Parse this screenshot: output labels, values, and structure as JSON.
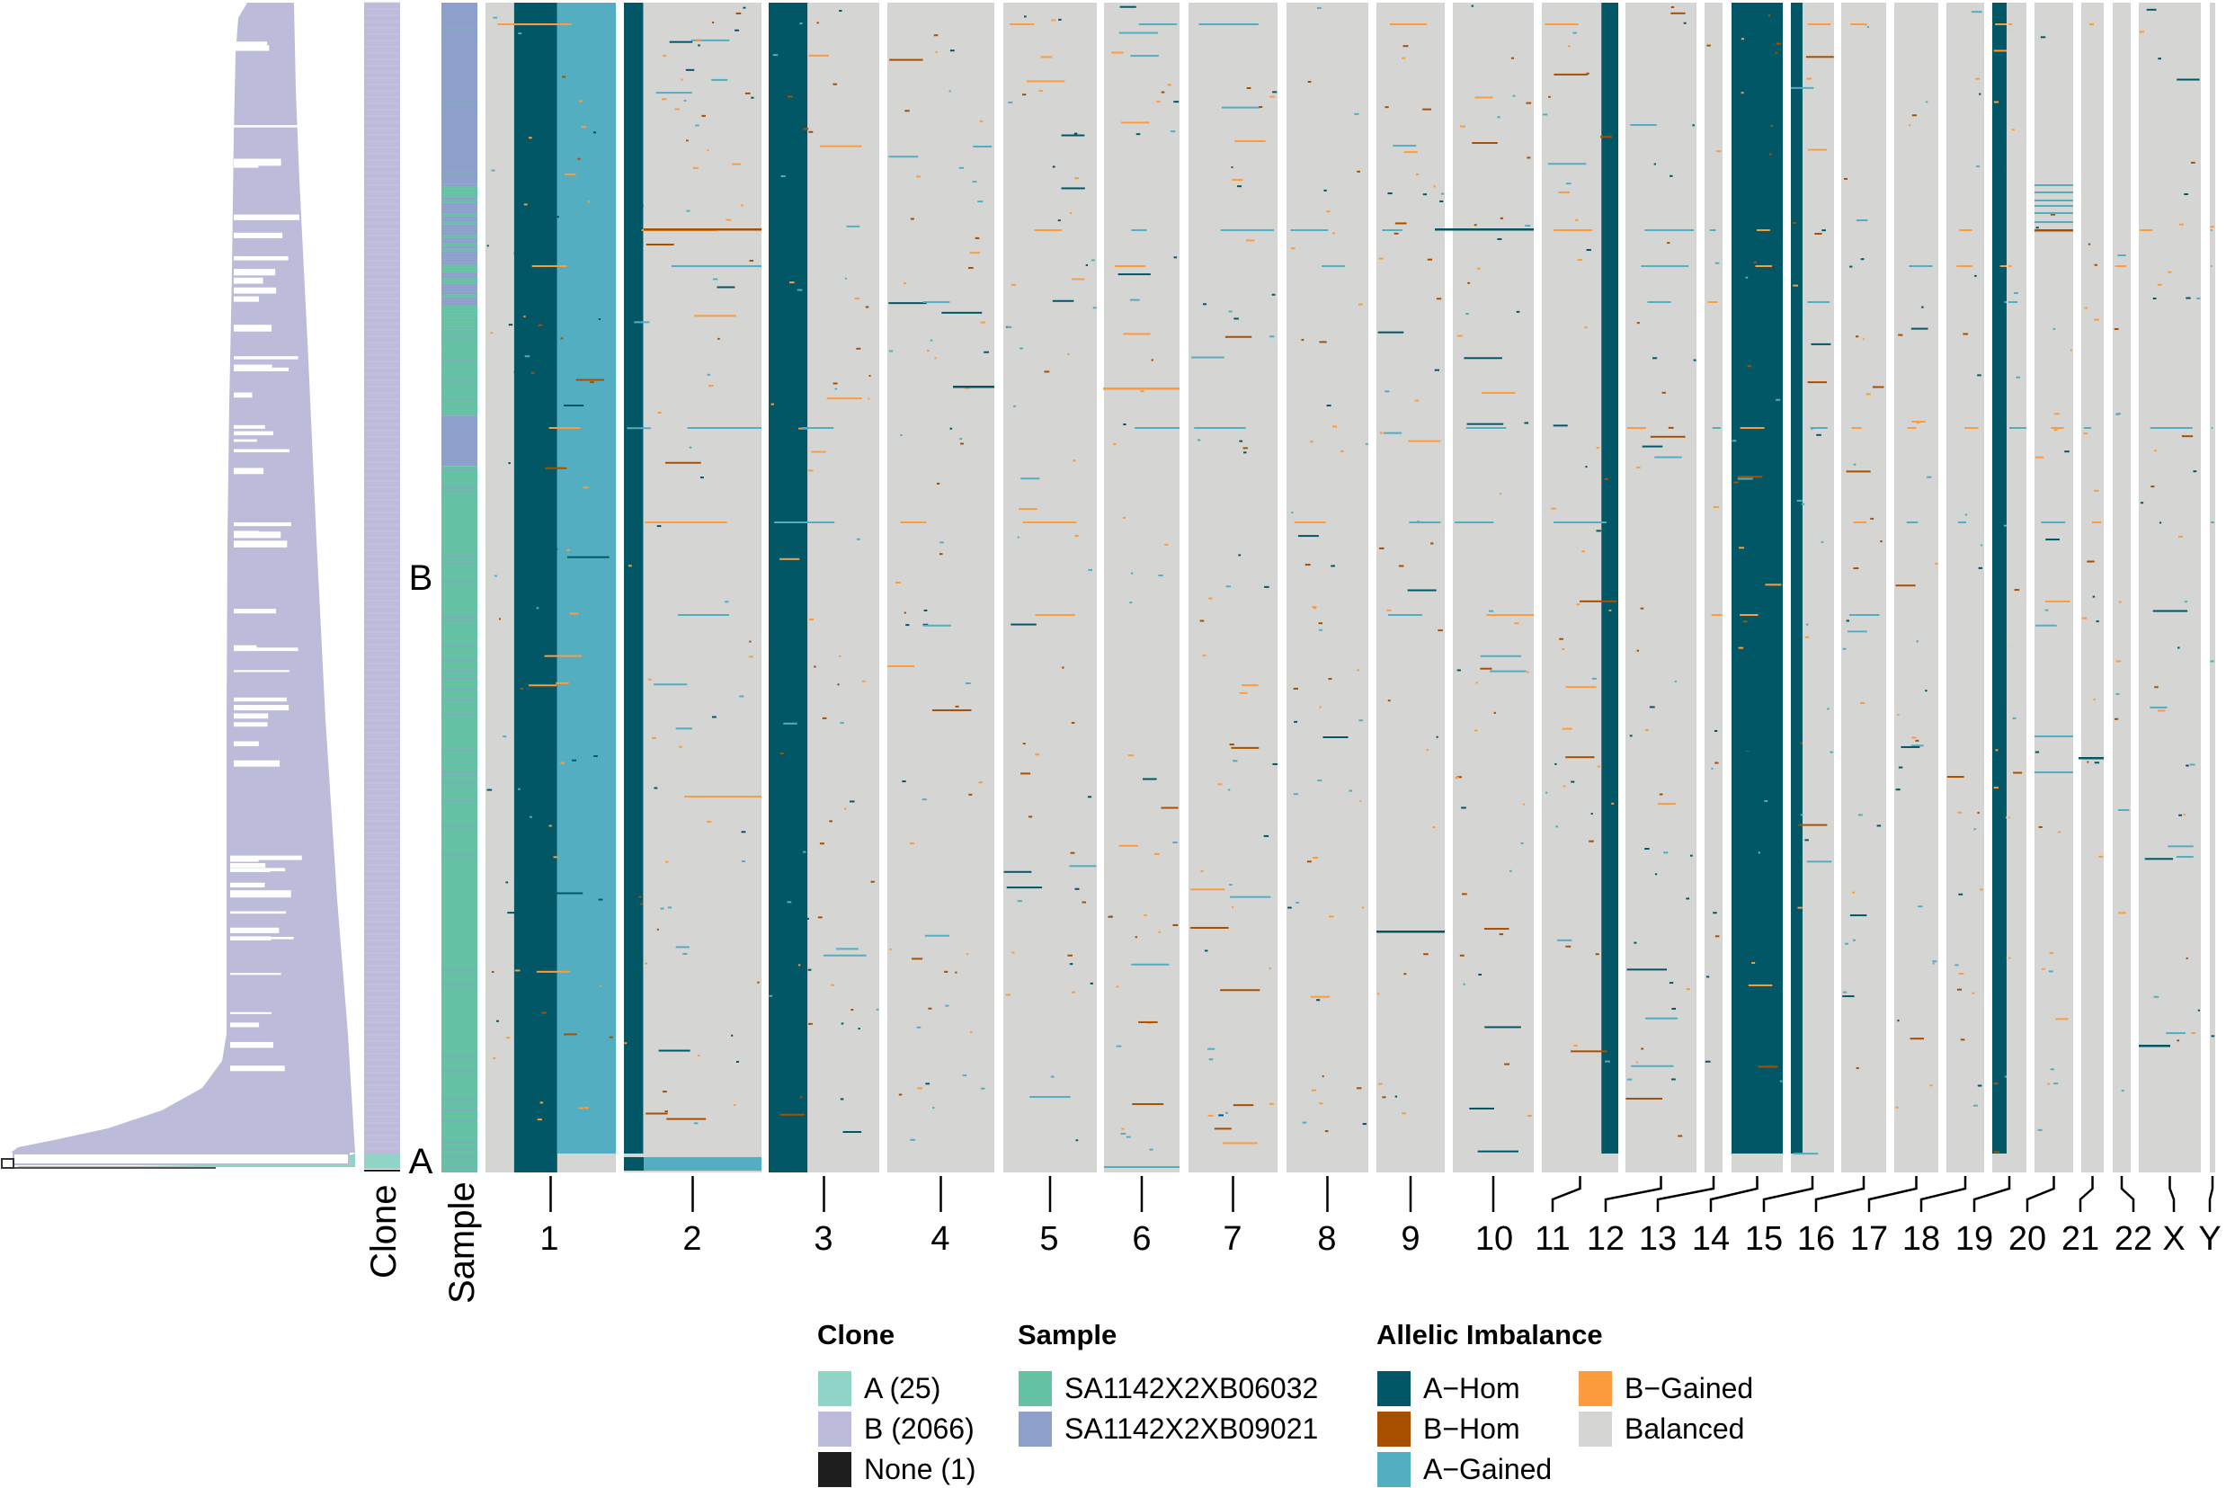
{
  "chart_data": {
    "type": "heatmap",
    "title": "",
    "row_annotations": [
      {
        "name": "Clone",
        "label": "Clone"
      },
      {
        "name": "Sample",
        "label": "Sample"
      }
    ],
    "clone_labels": [
      "B",
      "A"
    ],
    "chromosomes": [
      "1",
      "2",
      "3",
      "4",
      "5",
      "6",
      "7",
      "8",
      "9",
      "10",
      "11",
      "12",
      "13",
      "14",
      "15",
      "16",
      "17",
      "18",
      "19",
      "20",
      "21",
      "22",
      "X",
      "Y"
    ],
    "cell_counts": {
      "A": 25,
      "B": 2066,
      "None": 1
    },
    "sample_blocks": [
      {
        "sample": "SA1142X2XB09021",
        "row_fraction": [
          0.0,
          0.155
        ]
      },
      {
        "sample": "mixed",
        "row_fraction": [
          0.155,
          0.28
        ]
      },
      {
        "sample": "SA1142X2XB06032",
        "row_fraction": [
          0.28,
          0.353
        ]
      },
      {
        "sample": "SA1142X2XB09021",
        "row_fraction": [
          0.353,
          0.396
        ]
      },
      {
        "sample": "SA1142X2XB06032",
        "row_fraction": [
          0.396,
          1.0
        ]
      }
    ],
    "major_states": [
      {
        "chromosome": "1",
        "segment": [
          0.22,
          0.55
        ],
        "state": "A-Hom"
      },
      {
        "chromosome": "1",
        "segment": [
          0.55,
          1.0
        ],
        "state": "A-Gained"
      },
      {
        "chromosome": "2",
        "segment": [
          0.0,
          0.14
        ],
        "state": "A-Hom"
      },
      {
        "chromosome": "3",
        "segment": [
          0.0,
          0.35
        ],
        "state": "A-Hom"
      },
      {
        "chromosome": "11",
        "segment": [
          0.78,
          1.0
        ],
        "state": "A-Hom"
      },
      {
        "chromosome": "14",
        "segment": [
          0.0,
          1.0
        ],
        "state": "A-Hom"
      },
      {
        "chromosome": "15",
        "segment": [
          0.0,
          0.27
        ],
        "state": "A-Hom"
      },
      {
        "chromosome": "19",
        "segment": [
          0.0,
          0.42
        ],
        "state": "A-Hom"
      }
    ],
    "clone_A_states": [
      {
        "chromosome": "2",
        "segment": [
          0.14,
          1.0
        ],
        "state": "A-Gained"
      }
    ],
    "legend": {
      "clone": {
        "title": "Clone",
        "items": [
          {
            "label": "A (25)",
            "color": "#8fd4c7"
          },
          {
            "label": "B (2066)",
            "color": "#bdbbda"
          },
          {
            "label": "None (1)",
            "color": "#1e1e1e"
          }
        ]
      },
      "sample": {
        "title": "Sample",
        "items": [
          {
            "label": "SA1142X2XB06032",
            "color": "#66c2a5"
          },
          {
            "label": "SA1142X2XB09021",
            "color": "#8da0cb"
          }
        ]
      },
      "allelic": {
        "title": "Allelic Imbalance",
        "items": [
          {
            "label": "A−Hom",
            "color": "#025767"
          },
          {
            "label": "B−Hom",
            "color": "#a94f00"
          },
          {
            "label": "A−Gained",
            "color": "#53aec1"
          },
          {
            "label": "B−Gained",
            "color": "#fd9b3f"
          },
          {
            "label": "Balanced",
            "color": "#d5d5d4"
          }
        ]
      }
    }
  }
}
